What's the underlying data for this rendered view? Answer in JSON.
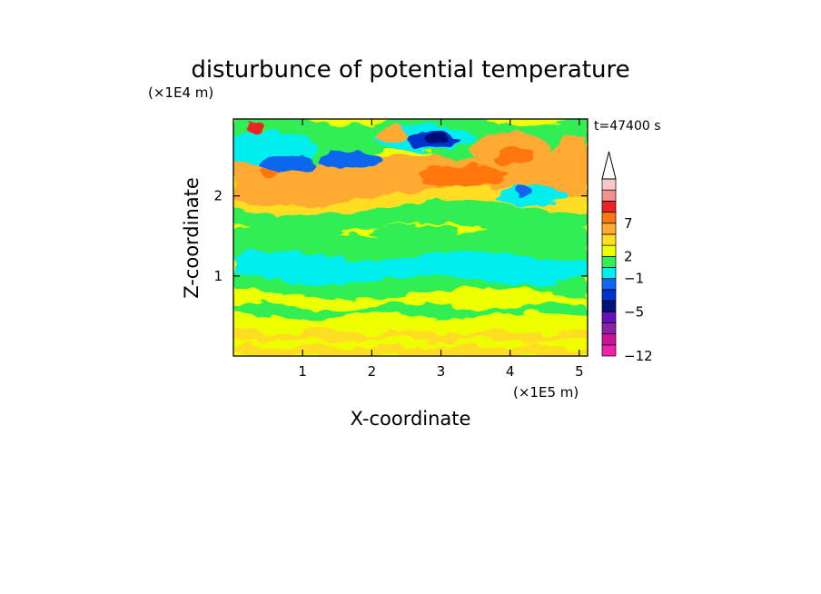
{
  "chart_data": {
    "type": "heatmap",
    "title": "disturbunce of potential temperature",
    "xlabel": "X-coordinate",
    "ylabel": "Z-coordinate",
    "x_multiplier": "(×1E5 m)",
    "y_multiplier": "(×1E4 m)",
    "time_label": "t=47400 s",
    "xlim": [
      0,
      5.12
    ],
    "ylim": [
      0,
      2.96
    ],
    "x_ticks": [
      "1",
      "2",
      "3",
      "4",
      "5"
    ],
    "y_ticks": [
      "1",
      "2"
    ],
    "colorbar": {
      "tick_labels": [
        "-12",
        "-5",
        "-1",
        "2",
        "7"
      ],
      "colors": [
        "#ee22aa",
        "#cc1199",
        "#8822aa",
        "#6611bb",
        "#001177",
        "#0033cc",
        "#1166ee",
        "#00eeee",
        "#33ee55",
        "#eeff00",
        "#ffdd22",
        "#ffaa33",
        "#ff7711",
        "#ee2222",
        "#f49292",
        "#f8c8c8"
      ],
      "extend_max": true
    },
    "layers": [
      {
        "level": "-1 to 0",
        "color": "#33ee55",
        "z_range": [
          0.85,
          1.5
        ]
      },
      {
        "level": "-2 to -1",
        "color": "#00eeee",
        "z_range": [
          0.95,
          1.25
        ]
      },
      {
        "level": "0 to 1",
        "color": "#eeff00",
        "z_range": [
          0.0,
          0.85
        ]
      },
      {
        "level": "2 to 4",
        "color": "#ffaa33",
        "z_range": [
          1.9,
          2.5
        ]
      },
      {
        "level": "-3 to -2",
        "color": "#1166ee",
        "z_range": [
          2.3,
          2.8
        ]
      }
    ]
  }
}
